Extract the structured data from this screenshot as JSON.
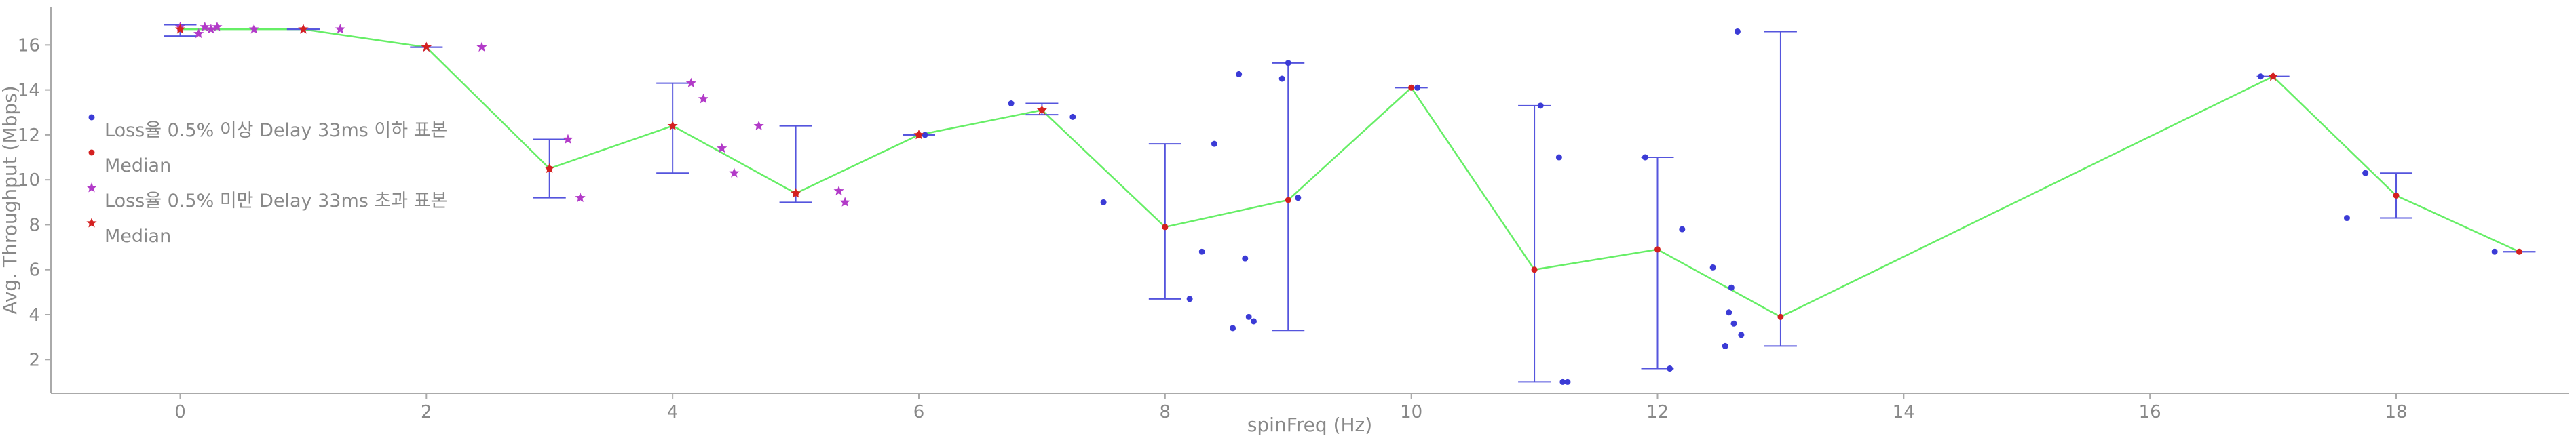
{
  "chart_data": {
    "type": "scatter",
    "xlabel": "spinFreq (Hz)",
    "ylabel": "Avg. Throughput (Mbps)",
    "xlim": [
      -1.05,
      19.4
    ],
    "ylim": [
      0.5,
      17.7
    ],
    "xticks": [
      0,
      2,
      4,
      6,
      8,
      10,
      12,
      14,
      16,
      18
    ],
    "yticks": [
      2,
      4,
      6,
      8,
      10,
      12,
      14,
      16
    ],
    "legend_position": "upper-left",
    "grid": false,
    "legend": [
      {
        "label": "Loss율 0.5% 이상 Delay 33ms 이하 표본",
        "marker": "dot",
        "color": "#3b3bd6"
      },
      {
        "label": "Median",
        "marker": "dot",
        "color": "#d42020"
      },
      {
        "label": "Loss율 0.5% 미만 Delay 33ms 초과 표본",
        "marker": "star",
        "color": "#b23ac8"
      },
      {
        "label": "Median",
        "marker": "star",
        "color": "#d42020"
      }
    ],
    "colors": {
      "loss_samples": "#3b3bd6",
      "delay_samples": "#b23ac8",
      "median": "#d42020",
      "median_line": "#66ee66",
      "error_bar": "#5555dd"
    },
    "median_line": [
      {
        "x": 0,
        "y": 16.7
      },
      {
        "x": 1,
        "y": 16.7
      },
      {
        "x": 2,
        "y": 15.9
      },
      {
        "x": 3,
        "y": 10.5
      },
      {
        "x": 4,
        "y": 12.4
      },
      {
        "x": 5,
        "y": 9.4
      },
      {
        "x": 6,
        "y": 12.0
      },
      {
        "x": 7,
        "y": 13.1
      },
      {
        "x": 8,
        "y": 7.9
      },
      {
        "x": 9,
        "y": 9.1
      },
      {
        "x": 10,
        "y": 14.1
      },
      {
        "x": 11,
        "y": 6.0
      },
      {
        "x": 12,
        "y": 6.9
      },
      {
        "x": 13,
        "y": 3.9
      },
      {
        "x": 17,
        "y": 14.6
      },
      {
        "x": 18,
        "y": 9.3
      },
      {
        "x": 19,
        "y": 6.8
      }
    ],
    "error_bars": [
      {
        "x": 0,
        "low": 16.4,
        "high": 16.9
      },
      {
        "x": 1,
        "low": 16.7,
        "high": 16.7
      },
      {
        "x": 2,
        "low": 15.9,
        "high": 15.9
      },
      {
        "x": 3,
        "low": 9.2,
        "high": 11.8
      },
      {
        "x": 4,
        "low": 10.3,
        "high": 14.3
      },
      {
        "x": 5,
        "low": 9.0,
        "high": 12.4
      },
      {
        "x": 6,
        "low": 12.0,
        "high": 12.0
      },
      {
        "x": 7,
        "low": 12.9,
        "high": 13.4
      },
      {
        "x": 8,
        "low": 4.7,
        "high": 11.6
      },
      {
        "x": 9,
        "low": 3.3,
        "high": 15.2
      },
      {
        "x": 10,
        "low": 14.1,
        "high": 14.1
      },
      {
        "x": 11,
        "low": 1.0,
        "high": 13.3
      },
      {
        "x": 12,
        "low": 1.6,
        "high": 11.0
      },
      {
        "x": 13,
        "low": 2.6,
        "high": 16.6
      },
      {
        "x": 17,
        "low": 14.6,
        "high": 14.6
      },
      {
        "x": 18,
        "low": 8.3,
        "high": 10.3
      },
      {
        "x": 19,
        "low": 6.8,
        "high": 6.8
      }
    ],
    "median_dots": [
      {
        "x": 3,
        "y": 10.5
      },
      {
        "x": 5,
        "y": 9.4
      },
      {
        "x": 6,
        "y": 12.0
      },
      {
        "x": 7,
        "y": 13.1
      },
      {
        "x": 8,
        "y": 7.9
      },
      {
        "x": 9,
        "y": 9.1
      },
      {
        "x": 10,
        "y": 14.1
      },
      {
        "x": 11,
        "y": 6.0
      },
      {
        "x": 12,
        "y": 6.9
      },
      {
        "x": 13,
        "y": 3.9
      },
      {
        "x": 17,
        "y": 14.6
      },
      {
        "x": 18,
        "y": 9.3
      },
      {
        "x": 19,
        "y": 6.8
      }
    ],
    "median_stars": [
      {
        "x": 0,
        "y": 16.7
      },
      {
        "x": 1,
        "y": 16.7
      },
      {
        "x": 2,
        "y": 15.9
      },
      {
        "x": 3,
        "y": 10.5
      },
      {
        "x": 4,
        "y": 12.4
      },
      {
        "x": 5,
        "y": 9.4
      },
      {
        "x": 6,
        "y": 12.0
      },
      {
        "x": 7,
        "y": 13.1
      },
      {
        "x": 17,
        "y": 14.6
      }
    ],
    "loss_samples": [
      {
        "x": 6.05,
        "y": 12.0
      },
      {
        "x": 6.75,
        "y": 13.4
      },
      {
        "x": 7.25,
        "y": 12.8
      },
      {
        "x": 7.5,
        "y": 9.0
      },
      {
        "x": 8.2,
        "y": 4.7
      },
      {
        "x": 8.3,
        "y": 6.8
      },
      {
        "x": 8.4,
        "y": 11.6
      },
      {
        "x": 8.55,
        "y": 3.4
      },
      {
        "x": 8.6,
        "y": 14.7
      },
      {
        "x": 8.65,
        "y": 6.5
      },
      {
        "x": 8.68,
        "y": 3.9
      },
      {
        "x": 8.72,
        "y": 3.7
      },
      {
        "x": 8.95,
        "y": 14.5
      },
      {
        "x": 9.0,
        "y": 15.2
      },
      {
        "x": 9.08,
        "y": 9.2
      },
      {
        "x": 10.05,
        "y": 14.1
      },
      {
        "x": 11.05,
        "y": 13.3
      },
      {
        "x": 11.2,
        "y": 11.0
      },
      {
        "x": 11.23,
        "y": 1.0
      },
      {
        "x": 11.27,
        "y": 1.0
      },
      {
        "x": 11.9,
        "y": 11.0
      },
      {
        "x": 12.1,
        "y": 1.6
      },
      {
        "x": 12.2,
        "y": 7.8
      },
      {
        "x": 12.45,
        "y": 6.1
      },
      {
        "x": 12.55,
        "y": 2.6
      },
      {
        "x": 12.58,
        "y": 4.1
      },
      {
        "x": 12.6,
        "y": 5.2
      },
      {
        "x": 12.62,
        "y": 3.6
      },
      {
        "x": 12.65,
        "y": 16.6
      },
      {
        "x": 12.68,
        "y": 3.1
      },
      {
        "x": 16.9,
        "y": 14.6
      },
      {
        "x": 17.6,
        "y": 8.3
      },
      {
        "x": 17.75,
        "y": 10.3
      },
      {
        "x": 18.8,
        "y": 6.8
      }
    ],
    "delay_samples": [
      {
        "x": 0.0,
        "y": 16.8
      },
      {
        "x": 0.15,
        "y": 16.5
      },
      {
        "x": 0.2,
        "y": 16.8
      },
      {
        "x": 0.25,
        "y": 16.7
      },
      {
        "x": 0.3,
        "y": 16.8
      },
      {
        "x": 0.6,
        "y": 16.7
      },
      {
        "x": 1.0,
        "y": 16.7
      },
      {
        "x": 1.3,
        "y": 16.7
      },
      {
        "x": 2.0,
        "y": 15.9
      },
      {
        "x": 2.45,
        "y": 15.9
      },
      {
        "x": 3.15,
        "y": 11.8
      },
      {
        "x": 3.25,
        "y": 9.2
      },
      {
        "x": 4.15,
        "y": 14.3
      },
      {
        "x": 4.25,
        "y": 13.6
      },
      {
        "x": 4.4,
        "y": 11.4
      },
      {
        "x": 4.5,
        "y": 10.3
      },
      {
        "x": 4.7,
        "y": 12.4
      },
      {
        "x": 5.35,
        "y": 9.5
      },
      {
        "x": 5.4,
        "y": 9.0
      }
    ]
  }
}
